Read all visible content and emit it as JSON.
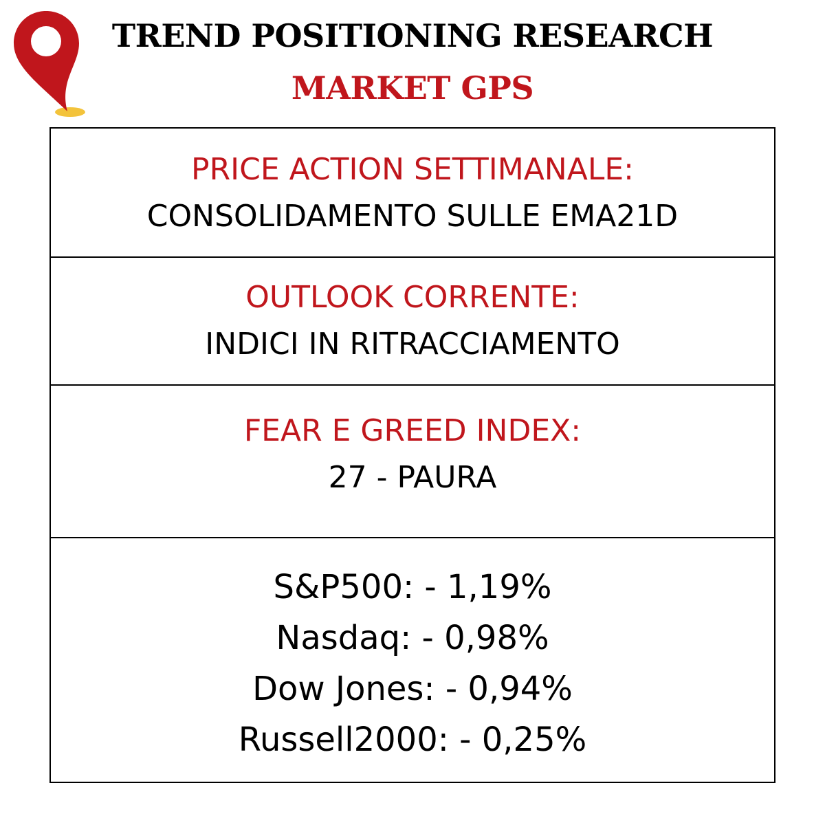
{
  "header": {
    "title": "TREND POSITIONING RESEARCH",
    "subtitle": "MARKET GPS",
    "icon": "map-pin-icon",
    "accent_color": "#c0161c",
    "pin_base_color": "#f3c33b"
  },
  "sections": [
    {
      "label": "PRICE ACTION SETTIMANALE:",
      "value_prefix": "CONSOLIDAMENTO SULLE ",
      "value_emphasis": "EMA21D"
    },
    {
      "label": "OUTLOOK CORRENTE:",
      "value": "INDICI IN RITRACCIAMENTO"
    },
    {
      "label": "FEAR E GREED INDEX:",
      "value": "27 - PAURA"
    }
  ],
  "markets": [
    {
      "name": "S&P500",
      "change": ": - 1,19%"
    },
    {
      "name": "Nasdaq",
      "change": ": - 0,98%"
    },
    {
      "name": "Dow Jones",
      "change": ": - 0,94%"
    },
    {
      "name": "Russell2000",
      "change": ": - 0,25%"
    }
  ]
}
